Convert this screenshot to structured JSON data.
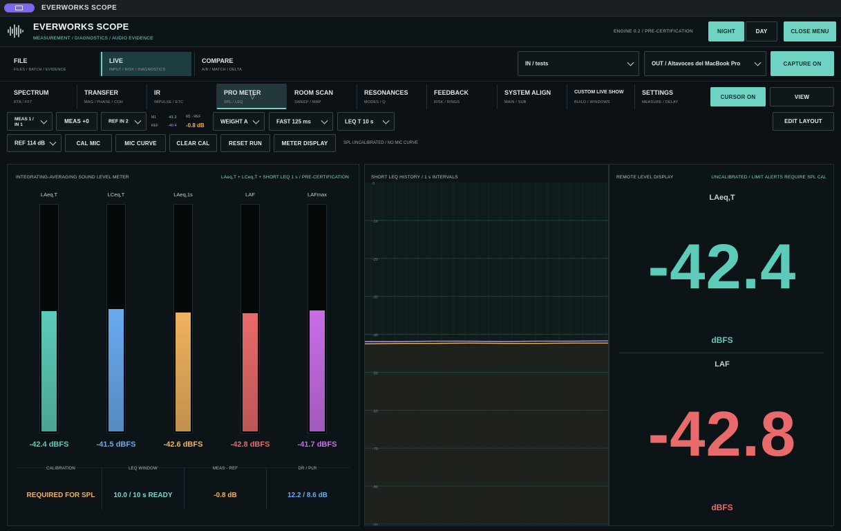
{
  "window": {
    "title": "EVERWORKS SCOPE"
  },
  "header": {
    "title": "EVERWORKS SCOPE",
    "subtitle": "MEASUREMENT / DIAGNOSTICS / AUDIO EVIDENCE",
    "engine": "ENGINE 0.2 / PRE-CERTIFICATION",
    "night": "NIGHT",
    "day": "DAY",
    "close_menu": "CLOSE MENU"
  },
  "nav": {
    "file": {
      "label": "FILE",
      "sub": "FILES / BATCH / EVIDENCE"
    },
    "live": {
      "label": "LIVE",
      "sub": "INPUT / RISK / DIAGNOSTICS"
    },
    "compare": {
      "label": "COMPARE",
      "sub": "A/B / MATCH / DELTA"
    },
    "input": "IN / tests",
    "output": "OUT / Altavoces del MacBook Pro",
    "capture": "CAPTURE ON"
  },
  "tools": [
    {
      "label": "SPECTRUM",
      "sub": "RTA / FFT"
    },
    {
      "label": "TRANSFER",
      "sub": "MAG / PHASE / COH"
    },
    {
      "label": "IR",
      "sub": "IMPULSE / ETC"
    },
    {
      "label": "PRO METER",
      "sub": "SPL / LEQ"
    },
    {
      "label": "ROOM SCAN",
      "sub": "SWEEP / MAP"
    },
    {
      "label": "RESONANCES",
      "sub": "MODES / Q"
    },
    {
      "label": "FEEDBACK",
      "sub": "RISK / RINGS"
    },
    {
      "label": "SYSTEM ALIGN",
      "sub": "MAIN / SUB"
    },
    {
      "label": "CUSTOM LIVE SHOW",
      "sub": "BUILD / WINDOWS"
    },
    {
      "label": "SETTINGS",
      "sub": "MEASURE / DELAY"
    }
  ],
  "toolbar": {
    "cursor": "CURSOR ON",
    "view": "VIEW",
    "meas": [
      "MEAS 1 /",
      "IN 1"
    ],
    "meas_offset": "MEAS +0",
    "ref_in": "REF IN 2",
    "m1": "M1",
    "m1_val": "-41.2",
    "ref": "REF",
    "ref_val": "-40.4",
    "m1_ref": "M1 - REF",
    "m1_ref_val": "-0.8 dB",
    "weight": "WEIGHT A",
    "fast": "FAST 125 ms",
    "leq": "LEQ T 10 s",
    "edit_layout": "EDIT LAYOUT",
    "ref_db": "REF 114 dB",
    "cal_mic": "CAL MIC",
    "mic_curve": "MIC CURVE",
    "clear_cal": "CLEAR CAL",
    "reset_run": "RESET RUN",
    "meter_display": "METER DISPLAY",
    "spl_status": "SPL UNCALIBRATED / NO MIC CURVE"
  },
  "meter_panel": {
    "title": "INTEGRATING-AVERAGING SOUND LEVEL METER",
    "tag": "LAeq,T + LCeq,T + SHORT LEQ 1 s / PRE-CERTIFICATION",
    "meters": [
      {
        "label": "LAeq,T",
        "value": "-42.4 dBFS",
        "level": 0.53,
        "color": "#5ccbb8"
      },
      {
        "label": "LCeq,T",
        "value": "-41.5 dBFS",
        "level": 0.54,
        "color": "#6aaaf0"
      },
      {
        "label": "LAeq,1s",
        "value": "-42.6 dBFS",
        "level": 0.525,
        "color": "#f0b25e"
      },
      {
        "label": "LAF",
        "value": "-42.8 dBFS",
        "level": 0.52,
        "color": "#e96a6a"
      },
      {
        "label": "LAFmax",
        "value": "-41.7 dBFS",
        "level": 0.535,
        "color": "#c86ee8"
      }
    ],
    "stats": [
      {
        "head": "CALIBRATION",
        "value": "REQUIRED FOR SPL",
        "color": "#f0b25e"
      },
      {
        "head": "LEQ WINDOW",
        "value": "10.0 / 10 s READY",
        "color": "#7fd6c9"
      },
      {
        "head": "MEAS - REF",
        "value": "-0.8 dB",
        "color": "#f0b25e"
      },
      {
        "head": "DR / PLR",
        "value": "12.2 / 8.6 dB",
        "color": "#6aaaf0"
      }
    ]
  },
  "history": {
    "title": "SHORT LEQ HISTORY / 1 s INTERVALS",
    "ticks": [
      "0",
      "-10",
      "-20",
      "-30",
      "-40",
      "-50",
      "-60",
      "-70",
      "-80",
      "-90"
    ]
  },
  "chart_data": {
    "type": "line",
    "title": "SHORT LEQ HISTORY / 1 s INTERVALS",
    "ylim": [
      -90,
      0
    ],
    "series": [
      {
        "values": [
          -41.9,
          -41.9,
          -41.8,
          -41.8,
          -41.9,
          -41.8,
          -41.8,
          -41.7
        ],
        "color": "#b08ef0"
      },
      {
        "values": [
          -42.5,
          -42.4,
          -42.4,
          -42.3,
          -42.4,
          -42.4,
          -42.3,
          -42.3
        ],
        "color": "#f0b25e"
      }
    ]
  },
  "remote": {
    "title": "REMOTE LEVEL DISPLAY",
    "tag": "UNCALIBRATED / LIMIT ALERTS REQUIRE SPL CAL",
    "primary": {
      "label": "LAeq,T",
      "value": "-42.4",
      "unit": "dBFS",
      "color": "#5ccbb8"
    },
    "secondary": {
      "label": "LAF",
      "value": "-42.8",
      "unit": "dBFS",
      "color": "#e96a6a"
    }
  }
}
